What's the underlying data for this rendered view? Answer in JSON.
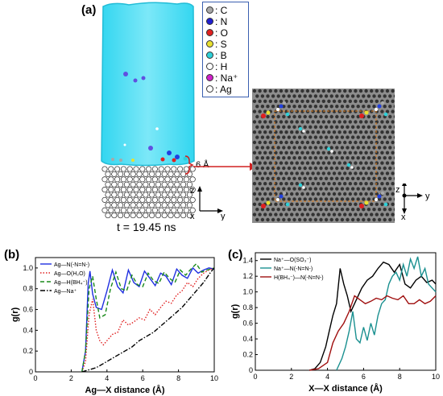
{
  "panels": {
    "a": {
      "label": "(a)",
      "legend": [
        {
          "symbol": "C",
          "color": "#a8a8a8"
        },
        {
          "symbol": "N",
          "color": "#1f1fd0"
        },
        {
          "symbol": "O",
          "color": "#e02020"
        },
        {
          "symbol": "S",
          "color": "#e8e030"
        },
        {
          "symbol": "B",
          "color": "#2dd0d8"
        },
        {
          "symbol": "H",
          "color": "#ffffff"
        },
        {
          "symbol": "Na⁺",
          "color": "#d020c8"
        },
        {
          "symbol": "Ag",
          "color": "#ffffff"
        }
      ],
      "distance_label": "6 Å",
      "time_label": "t = 19.45 ns",
      "axes_left": {
        "z": "z",
        "x": "x",
        "y": "y"
      },
      "axes_right": {
        "z": "z",
        "x": "x",
        "y": "y"
      }
    },
    "b": {
      "label": "(b)"
    },
    "c": {
      "label": "(c)"
    }
  },
  "chart_data": [
    {
      "type": "line",
      "panel": "b",
      "xlabel": "Ag—X distance (Å)",
      "ylabel": "g(r)",
      "xlim": [
        0,
        10
      ],
      "ylim": [
        0,
        1.1
      ],
      "xticks": [
        "0",
        "2",
        "4",
        "6",
        "8",
        "10"
      ],
      "yticks": [
        "0",
        "0.2",
        "0.4",
        "0.6",
        "0.8",
        "1.0"
      ],
      "legend_position": "top-left",
      "series": [
        {
          "name": "Ag—N(-N=N-)",
          "color": "#1f2fe0",
          "dash": "solid",
          "x": [
            2.6,
            2.8,
            2.95,
            3.05,
            3.2,
            3.4,
            3.7,
            4.0,
            4.3,
            4.6,
            4.9,
            5.2,
            5.5,
            5.8,
            6.1,
            6.4,
            6.7,
            7.0,
            7.3,
            7.6,
            7.9,
            8.2,
            8.5,
            8.8,
            9.1,
            9.4,
            9.7,
            10.0
          ],
          "y": [
            0.0,
            0.2,
            0.85,
            0.97,
            0.75,
            0.62,
            0.6,
            0.78,
            0.98,
            0.82,
            0.76,
            0.98,
            0.86,
            0.82,
            0.97,
            0.9,
            0.83,
            0.95,
            0.92,
            0.84,
            0.99,
            0.93,
            0.9,
            1.0,
            0.95,
            0.98,
            1.0,
            0.99
          ]
        },
        {
          "name": "Ag—O(H₂O)",
          "color": "#e02020",
          "dash": "dotted",
          "x": [
            2.6,
            2.8,
            3.0,
            3.2,
            3.4,
            3.6,
            3.8,
            4.0,
            4.3,
            4.6,
            4.9,
            5.2,
            5.5,
            5.8,
            6.1,
            6.4,
            6.7,
            7.0,
            7.3,
            7.6,
            7.9,
            8.2,
            8.5,
            8.8,
            9.1,
            9.4,
            9.7,
            10.0
          ],
          "y": [
            0.0,
            0.1,
            0.55,
            0.7,
            0.4,
            0.3,
            0.26,
            0.3,
            0.36,
            0.38,
            0.5,
            0.45,
            0.48,
            0.52,
            0.5,
            0.6,
            0.55,
            0.62,
            0.68,
            0.66,
            0.74,
            0.78,
            0.86,
            0.82,
            0.9,
            0.95,
            0.98,
            1.0
          ]
        },
        {
          "name": "Ag—H(BH₄⁻)",
          "color": "#1a8a1a",
          "dash": "dashed",
          "x": [
            2.6,
            2.8,
            3.0,
            3.2,
            3.4,
            3.6,
            3.9,
            4.2,
            4.5,
            4.8,
            5.1,
            5.4,
            5.7,
            6.0,
            6.3,
            6.6,
            6.9,
            7.2,
            7.5,
            7.8,
            8.1,
            8.4,
            8.7,
            9.0,
            9.3,
            9.6,
            10.0
          ],
          "y": [
            0.0,
            0.2,
            0.8,
            0.92,
            0.7,
            0.52,
            0.55,
            0.8,
            0.96,
            0.8,
            0.78,
            0.93,
            0.84,
            0.82,
            0.95,
            0.88,
            0.85,
            0.96,
            0.9,
            0.86,
            0.98,
            0.93,
            0.99,
            1.04,
            0.96,
            0.98,
            1.0
          ]
        },
        {
          "name": "Ag—Na⁺",
          "color": "#000000",
          "dash": "dashdot",
          "x": [
            2.6,
            3.0,
            3.4,
            3.8,
            4.2,
            4.6,
            5.0,
            5.4,
            5.8,
            6.2,
            6.6,
            7.0,
            7.4,
            7.8,
            8.2,
            8.6,
            9.0,
            9.4,
            9.8,
            10.0
          ],
          "y": [
            0.0,
            0.02,
            0.04,
            0.08,
            0.12,
            0.16,
            0.2,
            0.24,
            0.3,
            0.34,
            0.38,
            0.44,
            0.5,
            0.56,
            0.62,
            0.7,
            0.78,
            0.86,
            0.96,
            1.0
          ]
        }
      ]
    },
    {
      "type": "line",
      "panel": "c",
      "xlabel": "X—X distance (Å)",
      "ylabel": "g(r)",
      "xlim": [
        0,
        10
      ],
      "ylim": [
        0,
        1.5
      ],
      "xticks": [
        "0",
        "2",
        "4",
        "6",
        "8",
        "10"
      ],
      "yticks": [
        "0",
        "0.2",
        "0.4",
        "0.6",
        "0.8",
        "1.0",
        "1.2",
        "1.4"
      ],
      "legend_position": "top-left",
      "series": [
        {
          "name": "Na⁺—O(SO₃⁻)",
          "color": "#000000",
          "dash": "solid",
          "x": [
            3.0,
            3.3,
            3.6,
            3.9,
            4.1,
            4.3,
            4.5,
            4.7,
            4.9,
            5.1,
            5.3,
            5.6,
            5.9,
            6.2,
            6.5,
            6.8,
            7.1,
            7.4,
            7.7,
            8.0,
            8.3,
            8.6,
            8.9,
            9.2,
            9.5,
            9.8,
            10.0
          ],
          "y": [
            0.0,
            0.02,
            0.1,
            0.3,
            0.5,
            0.7,
            0.85,
            1.3,
            1.1,
            0.95,
            0.75,
            0.9,
            1.05,
            1.15,
            1.2,
            1.3,
            1.38,
            1.35,
            1.25,
            1.35,
            1.1,
            1.05,
            1.15,
            1.2,
            1.12,
            1.15,
            1.1
          ]
        },
        {
          "name": "Na⁺—N(-N=N-)",
          "color": "#1a9090",
          "dash": "solid",
          "x": [
            4.5,
            4.8,
            5.0,
            5.2,
            5.4,
            5.6,
            5.8,
            6.0,
            6.2,
            6.4,
            6.6,
            6.8,
            7.0,
            7.2,
            7.4,
            7.6,
            7.8,
            8.0,
            8.2,
            8.4,
            8.6,
            8.8,
            9.0,
            9.2,
            9.4,
            9.6,
            9.8,
            10.0
          ],
          "y": [
            0.0,
            0.15,
            0.3,
            0.5,
            0.75,
            0.4,
            0.35,
            0.55,
            0.38,
            0.6,
            0.45,
            0.7,
            0.85,
            0.9,
            1.1,
            1.2,
            1.25,
            1.15,
            1.35,
            1.2,
            1.42,
            1.3,
            1.45,
            1.2,
            1.3,
            1.1,
            1.05,
            1.0
          ]
        },
        {
          "name": "H(BH₄⁻)—N(-N=N-)",
          "color": "#a01010",
          "dash": "solid",
          "x": [
            3.0,
            3.5,
            4.0,
            4.3,
            4.6,
            4.9,
            5.2,
            5.5,
            5.8,
            6.1,
            6.4,
            6.7,
            7.0,
            7.3,
            7.6,
            7.9,
            8.2,
            8.5,
            8.8,
            9.1,
            9.4,
            9.7,
            10.0
          ],
          "y": [
            0.0,
            0.02,
            0.1,
            0.35,
            0.5,
            0.6,
            0.75,
            0.95,
            0.9,
            0.85,
            0.88,
            0.92,
            0.9,
            0.95,
            0.92,
            0.9,
            0.95,
            0.85,
            0.85,
            0.9,
            0.85,
            0.88,
            0.95
          ]
        }
      ]
    }
  ]
}
